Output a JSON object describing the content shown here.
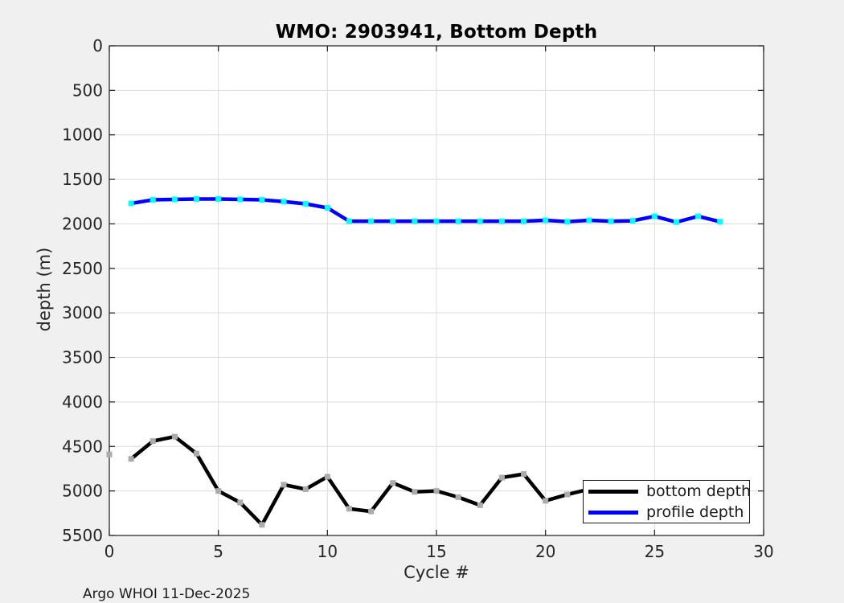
{
  "figure": {
    "background_color": "#f0f0f0",
    "plot_background_color": "#ffffff",
    "grid_color": "#dcdcdc",
    "axis_color": "#1a1a1a",
    "tick_label_color": "#262626"
  },
  "footer": {
    "text": "Argo WHOI 11-Dec-2025"
  },
  "chart_data": {
    "type": "line",
    "title": "WMO: 2903941, Bottom Depth",
    "xlabel": "Cycle #",
    "ylabel": "depth (m)",
    "xlim": [
      0,
      30
    ],
    "ylim": [
      0,
      5500
    ],
    "y_axis_direction": "reversed (0 m at top, 5500 m at bottom)",
    "x_ticks": [
      0,
      5,
      10,
      15,
      20,
      25,
      30
    ],
    "y_ticks": [
      0,
      500,
      1000,
      1500,
      2000,
      2500,
      3000,
      3500,
      4000,
      4500,
      5000,
      5500
    ],
    "grid": true,
    "legend": {
      "location": "inside lower right",
      "entries": [
        {
          "label": "bottom depth",
          "color": "#000000"
        },
        {
          "label": "profile depth",
          "color": "#0000ff"
        }
      ]
    },
    "series": [
      {
        "name": "bottom depth",
        "color": "#000000",
        "line_width": 4.5,
        "marker": "square",
        "marker_color": "#ababab",
        "x": [
          1,
          2,
          3,
          4,
          5,
          6,
          7,
          8,
          9,
          10,
          11,
          12,
          13,
          14,
          15,
          16,
          17,
          18,
          19,
          20,
          21,
          22
        ],
        "y": [
          4640,
          4440,
          4390,
          4580,
          5000,
          5130,
          5380,
          4930,
          4980,
          4840,
          5200,
          5230,
          4910,
          5010,
          5000,
          5070,
          5160,
          4850,
          4810,
          5110,
          5040,
          4980
        ],
        "marker_only_points": [
          {
            "x": 0,
            "y": 4590
          }
        ],
        "note": "line continues under the legend box after cycle 21"
      },
      {
        "name": "profile depth",
        "color": "#0000ff",
        "line_width": 4.5,
        "marker": "square",
        "marker_color": "#00ffff",
        "x": [
          1,
          2,
          3,
          4,
          5,
          6,
          7,
          8,
          9,
          10,
          11,
          12,
          13,
          14,
          15,
          16,
          17,
          18,
          19,
          20,
          21,
          22,
          23,
          24,
          25,
          26,
          27,
          28
        ],
        "y": [
          1770,
          1730,
          1725,
          1720,
          1720,
          1725,
          1730,
          1750,
          1775,
          1820,
          1970,
          1970,
          1970,
          1970,
          1970,
          1970,
          1970,
          1970,
          1970,
          1960,
          1975,
          1960,
          1970,
          1965,
          1915,
          1980,
          1915,
          1975
        ],
        "marker_only_points": []
      }
    ]
  }
}
